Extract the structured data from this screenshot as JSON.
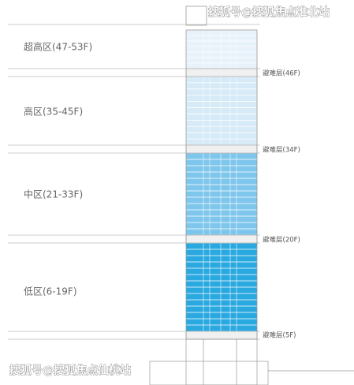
{
  "zones": [
    {
      "label": "超高区(47-53F)"
    },
    {
      "label": "高区(35-45F)"
    },
    {
      "label": "中区(21-33F)"
    },
    {
      "label": "低区(6-19F)"
    }
  ],
  "refuge_floors": [
    {
      "label": "避难层(46F)"
    },
    {
      "label": "避难层(34F)"
    },
    {
      "label": "避难层(20F)"
    },
    {
      "label": "避难层(5F)"
    }
  ],
  "watermarks": [
    "搜狐号@搜狐焦点淮北站",
    "搜狐号@搜狐焦点仙桃站"
  ]
}
